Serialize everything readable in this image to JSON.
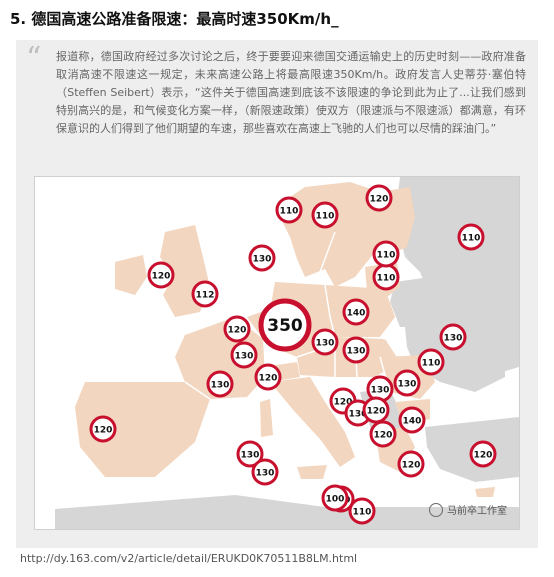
{
  "title": "5. 德国高速公路准备限速：最高时速350Km/h_",
  "quote": "报道称，德国政府经过多次讨论之后，终于要要迎来德国交通运输史上的历史时刻——政府准备取消高速不限速这一规定，未来高速公路上将最高限速350Km/h。政府发言人史蒂芬·塞伯特（Steffen Seibert）表示，“这件关于德国高速到底该不该限速的争论到此为止了...让我们感到特别高兴的是，和气候变化方案一样，（新限速政策）使双方（限速派与不限速派）都满意，有环保意识的人们得到了他们期望的车速，那些喜欢在高速上飞驰的人们也可以尽情的踩油门。”",
  "map": {
    "colors": {
      "land": "#f2d6bf",
      "other": "#d6d6d6",
      "sea": "#ffffff",
      "border": "#ffffff",
      "sign_ring": "#c8102e"
    },
    "signs": [
      {
        "value": "350",
        "big": true
      },
      {
        "value": "120"
      },
      {
        "value": "110"
      },
      {
        "value": "110"
      },
      {
        "value": "110"
      },
      {
        "value": "120"
      },
      {
        "value": "110"
      },
      {
        "value": "110"
      },
      {
        "value": "120"
      },
      {
        "value": "112"
      },
      {
        "value": "130"
      },
      {
        "value": "140"
      },
      {
        "value": "120"
      },
      {
        "value": "130"
      },
      {
        "value": "130"
      },
      {
        "value": "130"
      },
      {
        "value": "130"
      },
      {
        "value": "110"
      },
      {
        "value": "130"
      },
      {
        "value": "120"
      },
      {
        "value": "130"
      },
      {
        "value": "130"
      },
      {
        "value": "130"
      },
      {
        "value": "120"
      },
      {
        "value": "120"
      },
      {
        "value": "140"
      },
      {
        "value": "120"
      },
      {
        "value": "130"
      },
      {
        "value": "130"
      },
      {
        "value": "120"
      },
      {
        "value": "120"
      },
      {
        "value": "130"
      },
      {
        "value": "100"
      },
      {
        "value": "110"
      }
    ]
  },
  "watermark": "马前卒工作室",
  "source_url": "http://dy.163.com/v2/article/detail/ERUKD0K70511B8LM.html"
}
